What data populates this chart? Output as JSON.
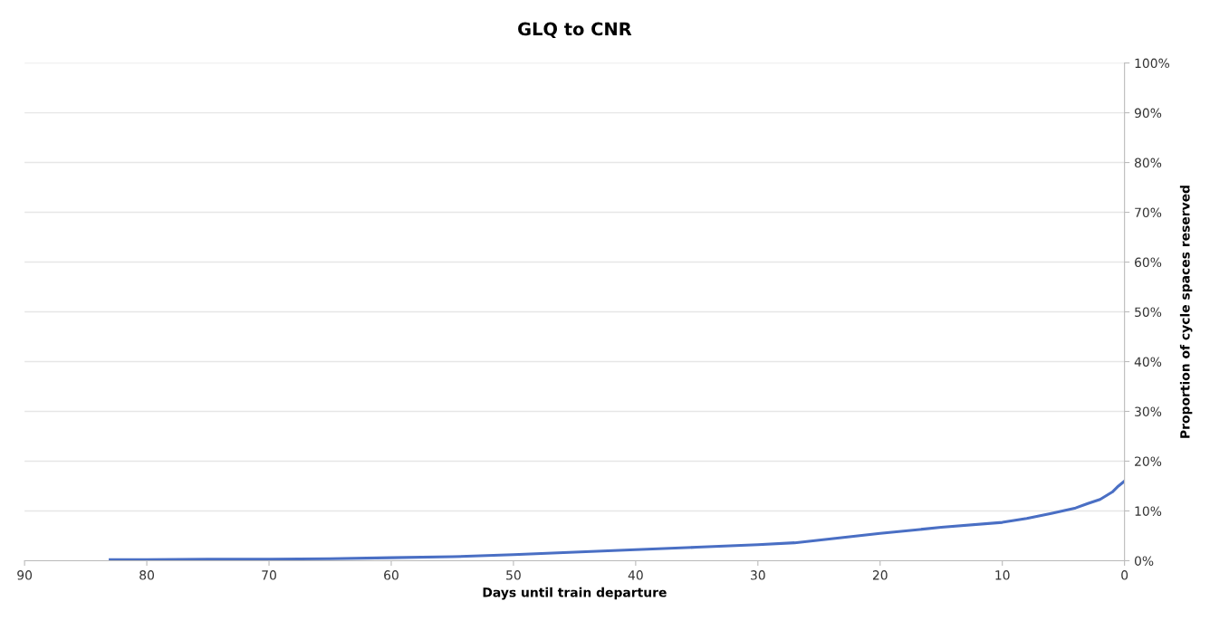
{
  "chart_data": {
    "type": "line",
    "title": "GLQ to CNR",
    "xlabel": "Days until train departure",
    "ylabel": "Proportion of cycle spaces reserved",
    "series": [
      {
        "color": "#4a6fc4",
        "x": [
          83,
          80,
          75,
          70,
          65,
          60,
          55,
          50,
          45,
          40,
          35,
          30,
          27,
          24,
          20,
          15,
          10,
          8,
          6,
          4,
          3,
          2,
          1,
          0.5,
          0
        ],
        "values": [
          0.2,
          0.2,
          0.3,
          0.3,
          0.4,
          0.6,
          0.8,
          1.2,
          1.7,
          2.2,
          2.7,
          3.2,
          3.6,
          4.4,
          5.5,
          6.7,
          7.7,
          8.5,
          9.5,
          10.6,
          11.5,
          12.3,
          13.8,
          15,
          16
        ]
      }
    ],
    "xlim": [
      90,
      0
    ],
    "xticks": [
      90,
      80,
      70,
      60,
      50,
      40,
      30,
      20,
      10,
      0
    ],
    "ylim": [
      0,
      100
    ],
    "yticks": [
      {
        "value": 0,
        "label": "0%"
      },
      {
        "value": 10,
        "label": "10%"
      },
      {
        "value": 20,
        "label": "20%"
      },
      {
        "value": 30,
        "label": "30%"
      },
      {
        "value": 40,
        "label": "40%"
      },
      {
        "value": 50,
        "label": "50%"
      },
      {
        "value": 60,
        "label": "60%"
      },
      {
        "value": 70,
        "label": "70%"
      },
      {
        "value": 80,
        "label": "80%"
      },
      {
        "value": 90,
        "label": "90%"
      },
      {
        "value": 100,
        "label": "100%"
      }
    ],
    "grid": "y",
    "legend": false,
    "marker": "none",
    "line_style": "solid"
  }
}
